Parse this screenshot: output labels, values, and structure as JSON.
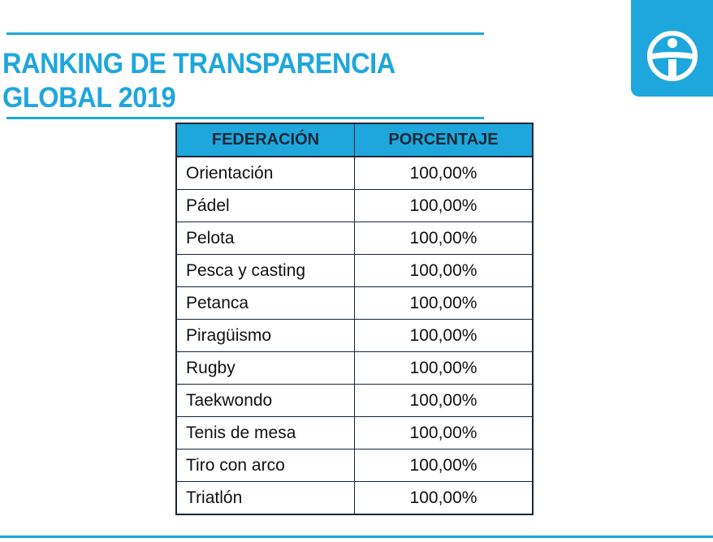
{
  "page": {
    "title_line1": "RANKING DE TRANSPARENCIA",
    "title_line2": "GLOBAL 2019"
  },
  "logo": {
    "icon": "transparency-international-logo-icon"
  },
  "table": {
    "headers": [
      "FEDERACIÓN",
      "PORCENTAJE"
    ],
    "rows": [
      {
        "federation": "Orientación",
        "percentage": "100,00%"
      },
      {
        "federation": "Pádel",
        "percentage": "100,00%"
      },
      {
        "federation": "Pelota",
        "percentage": "100,00%"
      },
      {
        "federation": "Pesca y casting",
        "percentage": "100,00%"
      },
      {
        "federation": "Petanca",
        "percentage": "100,00%"
      },
      {
        "federation": "Piragüismo",
        "percentage": "100,00%"
      },
      {
        "federation": "Rugby",
        "percentage": "100,00%"
      },
      {
        "federation": "Taekwondo",
        "percentage": "100,00%"
      },
      {
        "federation": "Tenis de mesa",
        "percentage": "100,00%"
      },
      {
        "federation": "Tiro con arco",
        "percentage": "100,00%"
      },
      {
        "federation": "Triatlón",
        "percentage": "100,00%"
      }
    ]
  },
  "colors": {
    "accent": "#1ea7dc",
    "border": "#17263a",
    "header_text": "#1b2838"
  }
}
